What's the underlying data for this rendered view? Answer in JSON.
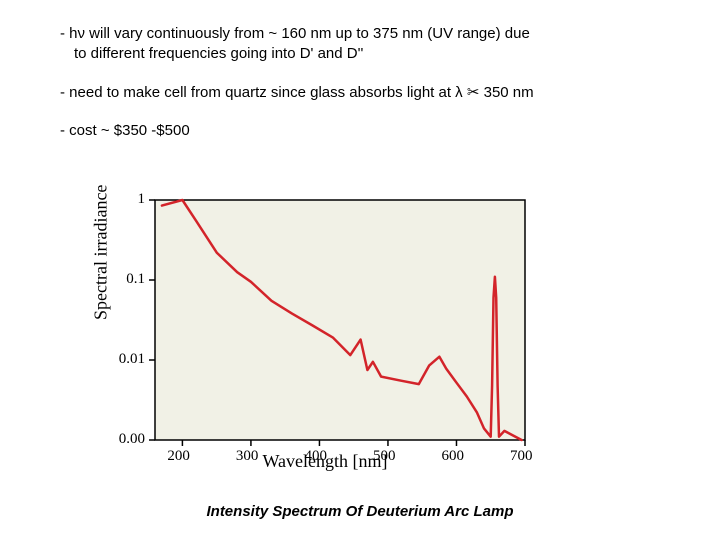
{
  "bullets": {
    "b1": "- hν will vary continuously from ~ 160 nm up to 375 nm (UV range) due",
    "b1b": "to different frequencies going into D' and D''",
    "b2a": "- need to make cell from quartz since glass absorbs light at λ ",
    "b2_tail": "   350 nm",
    "b3": "- cost ~ $350 -$500"
  },
  "caption": "Intensity Spectrum Of Deuterium Arc Lamp",
  "chart": {
    "type": "line",
    "background_color": "#f1f1e6",
    "grid_color": "#000000",
    "line_color": "#d3242a",
    "line_width": 2.5,
    "yscale": "log",
    "x_axis": {
      "min": 160,
      "max": 700,
      "ticks": [
        200,
        300,
        400,
        500,
        600,
        700
      ],
      "label": "Wavelength [nm]",
      "label_fontsize": 18,
      "tick_fontsize": 15
    },
    "y_axis": {
      "ticks": [
        0.0,
        0.01,
        0.1,
        1
      ],
      "tick_labels": [
        "0.00",
        "0.01",
        "0.1",
        "1"
      ],
      "label": "Spectral irradiance",
      "label_fontsize": 18,
      "tick_fontsize": 15
    },
    "data": [
      [
        170,
        0.85
      ],
      [
        200,
        1.0
      ],
      [
        220,
        0.55
      ],
      [
        250,
        0.22
      ],
      [
        280,
        0.125
      ],
      [
        300,
        0.095
      ],
      [
        330,
        0.055
      ],
      [
        360,
        0.038
      ],
      [
        390,
        0.027
      ],
      [
        420,
        0.019
      ],
      [
        445,
        0.0115
      ],
      [
        460,
        0.018
      ],
      [
        470,
        0.0075
      ],
      [
        478,
        0.0095
      ],
      [
        490,
        0.0062
      ],
      [
        520,
        0.0055
      ],
      [
        545,
        0.005
      ],
      [
        560,
        0.0085
      ],
      [
        575,
        0.011
      ],
      [
        585,
        0.0078
      ],
      [
        600,
        0.0052
      ],
      [
        615,
        0.0035
      ],
      [
        630,
        0.0022
      ],
      [
        640,
        0.0014
      ],
      [
        650,
        0.0011
      ],
      [
        652,
        0.0048
      ],
      [
        654,
        0.06
      ],
      [
        656,
        0.11
      ],
      [
        658,
        0.06
      ],
      [
        660,
        0.0048
      ],
      [
        662,
        0.0011
      ],
      [
        670,
        0.0013
      ],
      [
        695,
        0.001
      ]
    ]
  }
}
